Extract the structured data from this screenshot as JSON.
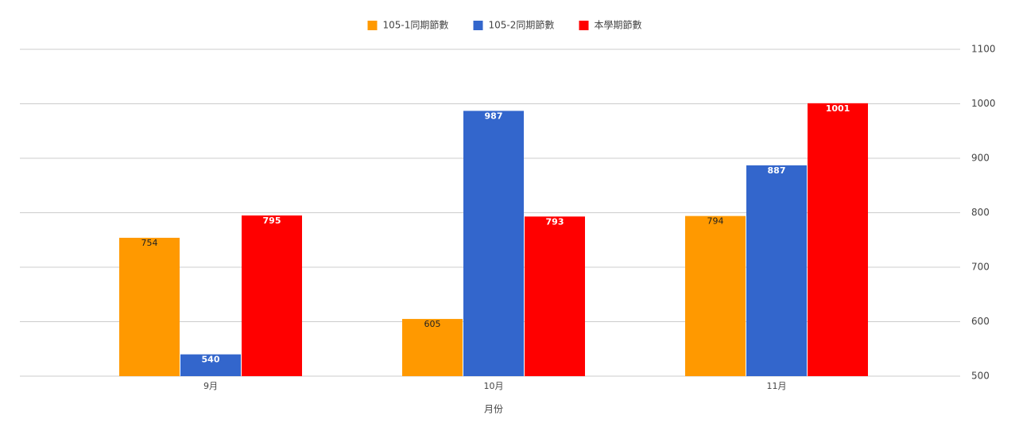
{
  "chart_data": {
    "type": "bar",
    "x_label": "月份",
    "categories": [
      "9月",
      "10月",
      "11月"
    ],
    "series": [
      {
        "name": "105-1同期節數",
        "color": "#ff9900",
        "values": [
          754,
          605,
          794
        ]
      },
      {
        "name": "105-2同期節數",
        "color": "#3366cc",
        "values": [
          540,
          987,
          887
        ]
      },
      {
        "name": "本學期節數",
        "color": "#ff0000",
        "values": [
          795,
          793,
          1001
        ]
      }
    ],
    "ylim": [
      500,
      1100
    ],
    "yticks": [
      500,
      600,
      700,
      800,
      900,
      1000,
      1100
    ],
    "grid": true,
    "legend": "top"
  }
}
